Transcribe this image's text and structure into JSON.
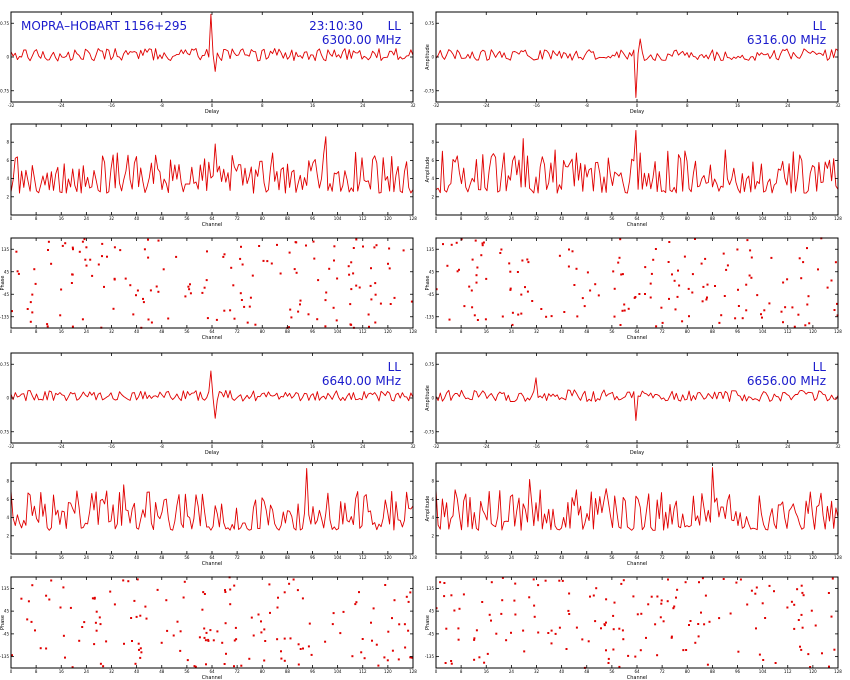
{
  "colors": {
    "trace": "#e00000",
    "annotation": "#1a1acc",
    "frame": "#000000"
  },
  "chart_data": [
    {
      "panel": "delay-6300",
      "type": "line",
      "xlabel": "Delay",
      "ylabel": "",
      "annotations": {
        "left": "MOPRA–HOBART 1156+295",
        "time": "23:10:30",
        "pol": "LL",
        "freq": "6300.00 MHz"
      },
      "xlim": [
        -32,
        32
      ],
      "ylim": [
        -1,
        1
      ],
      "xticks": [
        -32,
        -24,
        -16,
        -8,
        0,
        8,
        16,
        24,
        32
      ],
      "yticks": [
        -0.75,
        0,
        0.75
      ],
      "seed": 11,
      "noise_center": 0.05,
      "noise_amp": 0.28,
      "features": [
        {
          "x": 0,
          "y": 0.95
        },
        {
          "x": 0.4,
          "y": -0.32
        }
      ]
    },
    {
      "panel": "delay-6316",
      "type": "line",
      "xlabel": "Delay",
      "ylabel": "Amplitude",
      "annotations": {
        "left": "",
        "time": "",
        "pol": "LL",
        "freq": "6316.00 MHz"
      },
      "xlim": [
        -32,
        32
      ],
      "ylim": [
        -1,
        1
      ],
      "xticks": [
        -32,
        -24,
        -16,
        -8,
        0,
        8,
        16,
        24,
        32
      ],
      "yticks": [
        -0.75,
        0,
        0.75
      ],
      "seed": 23,
      "noise_center": 0.05,
      "noise_amp": 0.26,
      "features": [
        {
          "x": 0,
          "y": -0.9
        },
        {
          "x": 0.4,
          "y": 0.4
        }
      ]
    },
    {
      "panel": "channel-amp-6300",
      "type": "line",
      "xlabel": "Channel",
      "ylabel": "",
      "xlim": [
        0,
        128
      ],
      "ylim": [
        0,
        10
      ],
      "xticks": [
        0,
        8,
        16,
        24,
        32,
        40,
        48,
        56,
        64,
        72,
        80,
        88,
        96,
        104,
        112,
        120,
        128
      ],
      "yticks": [
        2,
        4,
        6,
        8
      ],
      "seed": 37,
      "noise_center": 2.4,
      "noise_amp": 4.5,
      "features": [
        {
          "x": 100,
          "y": 8.6
        },
        {
          "x": 65,
          "y": 7.8
        }
      ]
    },
    {
      "panel": "channel-amp-6316",
      "type": "line",
      "xlabel": "Channel",
      "ylabel": "Amplitude",
      "xlim": [
        0,
        128
      ],
      "ylim": [
        0,
        10
      ],
      "xticks": [
        0,
        8,
        16,
        24,
        32,
        40,
        48,
        56,
        64,
        72,
        80,
        88,
        96,
        104,
        112,
        120,
        128
      ],
      "yticks": [
        2,
        4,
        6,
        8
      ],
      "seed": 41,
      "noise_center": 2.4,
      "noise_amp": 4.8,
      "features": [
        {
          "x": 64,
          "y": 9.3
        },
        {
          "x": 28,
          "y": 8.4
        }
      ]
    },
    {
      "panel": "channel-phase-6300",
      "type": "scatter",
      "xlabel": "Channel",
      "ylabel": "Phase",
      "xlim": [
        0,
        128
      ],
      "ylim": [
        -180,
        180
      ],
      "xticks": [
        0,
        8,
        16,
        24,
        32,
        40,
        48,
        56,
        64,
        72,
        80,
        88,
        96,
        104,
        112,
        120,
        128
      ],
      "yticks": [
        -135,
        -45,
        45,
        135
      ],
      "seed": 53,
      "npoints": 160
    },
    {
      "panel": "channel-phase-6316",
      "type": "scatter",
      "xlabel": "Channel",
      "ylabel": "Phase",
      "xlim": [
        0,
        128
      ],
      "ylim": [
        -180,
        180
      ],
      "xticks": [
        0,
        8,
        16,
        24,
        32,
        40,
        48,
        56,
        64,
        72,
        80,
        88,
        96,
        104,
        112,
        120,
        128
      ],
      "yticks": [
        -135,
        -45,
        45,
        135
      ],
      "seed": 59,
      "npoints": 160
    },
    {
      "panel": "delay-6640",
      "type": "line",
      "xlabel": "Delay",
      "ylabel": "",
      "annotations": {
        "left": "",
        "time": "",
        "pol": "LL",
        "freq": "6640.00 MHz"
      },
      "xlim": [
        -32,
        32
      ],
      "ylim": [
        -1,
        1
      ],
      "xticks": [
        -32,
        -24,
        -16,
        -8,
        0,
        8,
        16,
        24,
        32
      ],
      "yticks": [
        -0.75,
        0,
        0.75
      ],
      "seed": 67,
      "noise_center": 0.05,
      "noise_amp": 0.24,
      "features": [
        {
          "x": 0,
          "y": 0.6
        },
        {
          "x": 0.4,
          "y": -0.45
        }
      ]
    },
    {
      "panel": "delay-6656",
      "type": "line",
      "xlabel": "Delay",
      "ylabel": "Amplitude",
      "annotations": {
        "left": "",
        "time": "",
        "pol": "LL",
        "freq": "6656.00 MHz"
      },
      "xlim": [
        -32,
        32
      ],
      "ylim": [
        -1,
        1
      ],
      "xticks": [
        -32,
        -24,
        -16,
        -8,
        0,
        8,
        16,
        24,
        32
      ],
      "yticks": [
        -0.75,
        0,
        0.75
      ],
      "seed": 71,
      "noise_center": 0.05,
      "noise_amp": 0.26,
      "features": [
        {
          "x": 0,
          "y": -0.5
        },
        {
          "x": -16,
          "y": 0.45
        }
      ]
    },
    {
      "panel": "channel-amp-6640",
      "type": "line",
      "xlabel": "Channel",
      "ylabel": "",
      "xlim": [
        0,
        128
      ],
      "ylim": [
        0,
        10
      ],
      "xticks": [
        0,
        8,
        16,
        24,
        32,
        40,
        48,
        56,
        64,
        72,
        80,
        88,
        96,
        104,
        112,
        120,
        128
      ],
      "yticks": [
        2,
        4,
        6,
        8
      ],
      "seed": 83,
      "noise_center": 2.6,
      "noise_amp": 4.4,
      "features": [
        {
          "x": 94,
          "y": 9.4
        },
        {
          "x": 36,
          "y": 7.6
        }
      ]
    },
    {
      "panel": "channel-amp-6656",
      "type": "line",
      "xlabel": "Channel",
      "ylabel": "Amplitude",
      "xlim": [
        0,
        128
      ],
      "ylim": [
        0,
        10
      ],
      "xticks": [
        0,
        8,
        16,
        24,
        32,
        40,
        48,
        56,
        64,
        72,
        80,
        88,
        96,
        104,
        112,
        120,
        128
      ],
      "yticks": [
        2,
        4,
        6,
        8
      ],
      "seed": 97,
      "noise_center": 2.6,
      "noise_amp": 4.6,
      "features": [
        {
          "x": 88,
          "y": 9.5
        },
        {
          "x": 30,
          "y": 8.2
        }
      ]
    },
    {
      "panel": "channel-phase-6640",
      "type": "scatter",
      "xlabel": "Channel",
      "ylabel": "Phase",
      "xlim": [
        0,
        128
      ],
      "ylim": [
        -180,
        180
      ],
      "xticks": [
        0,
        8,
        16,
        24,
        32,
        40,
        48,
        56,
        64,
        72,
        80,
        88,
        96,
        104,
        112,
        120,
        128
      ],
      "yticks": [
        -135,
        -45,
        45,
        135
      ],
      "seed": 101,
      "npoints": 160
    },
    {
      "panel": "channel-phase-6656",
      "type": "scatter",
      "xlabel": "Channel",
      "ylabel": "Phase",
      "xlim": [
        0,
        128
      ],
      "ylim": [
        -180,
        180
      ],
      "xticks": [
        0,
        8,
        16,
        24,
        32,
        40,
        48,
        56,
        64,
        72,
        80,
        88,
        96,
        104,
        112,
        120,
        128
      ],
      "yticks": [
        -135,
        -45,
        45,
        135
      ],
      "seed": 107,
      "npoints": 160
    }
  ]
}
